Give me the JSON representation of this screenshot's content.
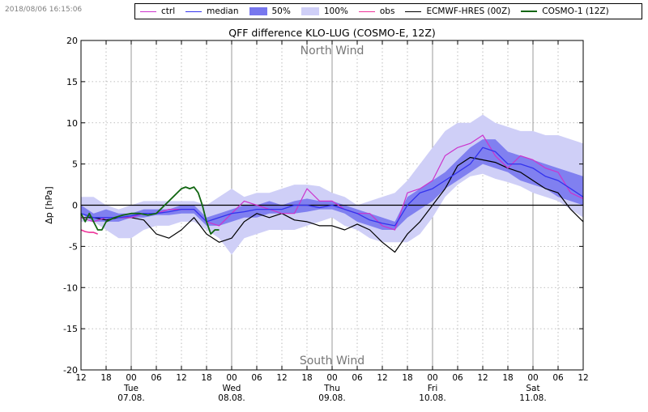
{
  "timestamp": "2018/08/06 16:15:06",
  "chart_data": {
    "type": "line",
    "title": "QFF difference KLO-LUG (COSMO-E, 12Z)",
    "ylabel": "Δp [hPa]",
    "xlabel": "",
    "ylim": [
      -20,
      20
    ],
    "xlim": [
      0,
      120
    ],
    "x_unit": "hours since 06.08. 12:00",
    "yticks": [
      -20,
      -15,
      -10,
      -5,
      0,
      5,
      10,
      15,
      20
    ],
    "xticks": [
      {
        "hour": 0,
        "label": "12"
      },
      {
        "hour": 6,
        "label": "18"
      },
      {
        "hour": 12,
        "label": "00"
      },
      {
        "hour": 18,
        "label": "06"
      },
      {
        "hour": 24,
        "label": "12"
      },
      {
        "hour": 30,
        "label": "18"
      },
      {
        "hour": 36,
        "label": "00"
      },
      {
        "hour": 42,
        "label": "06"
      },
      {
        "hour": 48,
        "label": "12"
      },
      {
        "hour": 54,
        "label": "18"
      },
      {
        "hour": 60,
        "label": "00"
      },
      {
        "hour": 66,
        "label": "06"
      },
      {
        "hour": 72,
        "label": "12"
      },
      {
        "hour": 78,
        "label": "18"
      },
      {
        "hour": 84,
        "label": "00"
      },
      {
        "hour": 90,
        "label": "06"
      },
      {
        "hour": 96,
        "label": "12"
      },
      {
        "hour": 102,
        "label": "18"
      },
      {
        "hour": 108,
        "label": "00"
      },
      {
        "hour": 114,
        "label": "06"
      },
      {
        "hour": 120,
        "label": "12"
      }
    ],
    "day_labels": [
      {
        "hour": 12,
        "day": "Tue",
        "date": "07.08."
      },
      {
        "hour": 36,
        "day": "Wed",
        "date": "08.08."
      },
      {
        "hour": 60,
        "day": "Thu",
        "date": "09.08."
      },
      {
        "hour": 84,
        "day": "Fri",
        "date": "10.08."
      },
      {
        "hour": 108,
        "day": "Sat",
        "date": "11.08."
      }
    ],
    "annotations": [
      {
        "text": "North Wind",
        "y": 18.8
      },
      {
        "text": "South Wind",
        "y": -18.8
      }
    ],
    "grid": true,
    "legend_position": "top",
    "legend": [
      {
        "label": "ctrl",
        "kind": "line",
        "color": "#cc33cc"
      },
      {
        "label": "median",
        "kind": "line",
        "color": "#3333ee"
      },
      {
        "label": "50%",
        "kind": "patch",
        "color": "#7777ee"
      },
      {
        "label": "100%",
        "kind": "patch",
        "color": "#cfcff7"
      },
      {
        "label": "obs",
        "kind": "line",
        "color": "#ee3399"
      },
      {
        "label": "ECMWF-HRES (00Z)",
        "kind": "line",
        "color": "#000000"
      },
      {
        "label": "COSMO-1 (12Z)",
        "kind": "line",
        "color": "#116611"
      }
    ],
    "x": [
      0,
      3,
      6,
      9,
      12,
      15,
      18,
      21,
      24,
      27,
      30,
      33,
      36,
      39,
      42,
      45,
      48,
      51,
      54,
      57,
      60,
      63,
      66,
      69,
      72,
      75,
      78,
      81,
      84,
      87,
      90,
      93,
      96,
      99,
      102,
      105,
      108,
      111,
      114,
      117,
      120
    ],
    "band_100": {
      "upper": [
        1,
        1,
        0,
        -0.5,
        0,
        0.5,
        0.5,
        0.5,
        0.5,
        0.5,
        0,
        1,
        2,
        1,
        1.5,
        1.5,
        2,
        2.5,
        2.5,
        2.3,
        1.5,
        1,
        0,
        0.5,
        1,
        1.5,
        3,
        5,
        7,
        9,
        10,
        10,
        11,
        10,
        9.5,
        9,
        9,
        8.5,
        8.5,
        8,
        7.5
      ],
      "lower": [
        -2,
        -2,
        -3,
        -4,
        -4,
        -3,
        -2.5,
        -2.5,
        -2,
        -2,
        -3,
        -4,
        -6,
        -4,
        -3.5,
        -3,
        -3,
        -3,
        -2.5,
        -2,
        -1.5,
        -2.5,
        -3,
        -4,
        -4.5,
        -4.5,
        -4.5,
        -3.5,
        -1.5,
        1,
        2.5,
        3.5,
        3.8,
        3.2,
        2.8,
        2.3,
        1.5,
        1,
        0.5,
        -0.5,
        -1.5
      ]
    },
    "band_50": {
      "upper": [
        0,
        -1,
        -0.5,
        -1,
        -1,
        -0.5,
        -0.5,
        -0.5,
        0,
        0,
        -1.5,
        -1,
        -0.5,
        0,
        0,
        0.5,
        0,
        0.5,
        0.8,
        0.5,
        0.5,
        0,
        -0.5,
        -1,
        -1.5,
        -2,
        1,
        2,
        3,
        4,
        5.5,
        7,
        8,
        8,
        6.5,
        6,
        5.5,
        5,
        4.5,
        4,
        3.5
      ],
      "lower": [
        -1,
        -2,
        -2,
        -2,
        -1.5,
        -1.5,
        -1.2,
        -1.2,
        -1,
        -1,
        -2.5,
        -2.5,
        -2,
        -1.5,
        -1.5,
        -1,
        -1,
        -1,
        -0.8,
        -0.5,
        -0.5,
        -1,
        -2,
        -2.5,
        -3,
        -3,
        -1.5,
        -0.5,
        0.5,
        2,
        3,
        4,
        5,
        4.5,
        4,
        3,
        2.5,
        2,
        1,
        0.5,
        0
      ]
    },
    "series": [
      {
        "name": "median",
        "color": "#3333ee",
        "width": 1.3,
        "x": [
          0,
          3,
          6,
          9,
          12,
          15,
          18,
          21,
          24,
          27,
          30,
          33,
          36,
          39,
          42,
          45,
          48,
          51,
          54,
          57,
          60,
          63,
          66,
          69,
          72,
          75,
          78,
          81,
          84,
          87,
          90,
          93,
          96,
          99,
          102,
          105,
          108,
          111,
          114,
          117,
          120
        ],
        "y": [
          -1,
          -1.5,
          -1.5,
          -1.5,
          -1.3,
          -1,
          -1,
          -0.8,
          -0.5,
          -0.5,
          -2,
          -1.5,
          -1,
          -0.8,
          -0.5,
          -0.5,
          -0.5,
          0,
          0,
          -0.3,
          0,
          -0.5,
          -1,
          -1.8,
          -2.2,
          -2.5,
          0,
          1.5,
          2,
          3,
          4,
          5,
          7,
          6.5,
          5,
          5,
          4.5,
          3.5,
          3,
          2,
          1
        ]
      },
      {
        "name": "ctrl",
        "color": "#cc33cc",
        "width": 1.2,
        "x": [
          0,
          3,
          6,
          9,
          12,
          15,
          18,
          21,
          24,
          27,
          30,
          33,
          36,
          39,
          42,
          45,
          48,
          51,
          54,
          57,
          60,
          63,
          66,
          69,
          72,
          75,
          78,
          81,
          84,
          87,
          90,
          93,
          96,
          99,
          102,
          105,
          108,
          111,
          114,
          117,
          120
        ],
        "y": [
          -1.5,
          -2,
          -1.5,
          -1.5,
          -1.5,
          -1,
          -1,
          -0.5,
          -0.5,
          -0.5,
          -2,
          -2.5,
          -1,
          0.5,
          0,
          -0.5,
          -1,
          -1,
          2,
          0.5,
          0.5,
          -0.5,
          -1,
          -1,
          -2.5,
          -3,
          1.5,
          2,
          3,
          6,
          7,
          7.5,
          8.5,
          6,
          4.5,
          6,
          5.5,
          4.5,
          4,
          1.5,
          0.8
        ]
      },
      {
        "name": "ECMWF-HRES (00Z)",
        "color": "#000000",
        "width": 1.2,
        "x": [
          0,
          3,
          6,
          9,
          12,
          15,
          18,
          21,
          24,
          27,
          30,
          33,
          36,
          39,
          42,
          45,
          48,
          51,
          54,
          57,
          60,
          63,
          66,
          69,
          72,
          75,
          78,
          81,
          84,
          87,
          90,
          93,
          96,
          99,
          102,
          105,
          108,
          111,
          114,
          117,
          120
        ],
        "y": [
          -1.5,
          -1.5,
          -1.8,
          -1.5,
          -1.5,
          -1.8,
          -3.5,
          -4,
          -3,
          -1.5,
          -3.5,
          -4.5,
          -4,
          -2,
          -1,
          -1.5,
          -1,
          -1.8,
          -2,
          -2.5,
          -2.5,
          -3,
          -2.3,
          -3,
          -4.5,
          -5.7,
          -3.5,
          -2,
          0,
          2,
          4.8,
          5.8,
          5.5,
          5.2,
          4.5,
          4,
          3,
          2,
          1.5,
          -0.5,
          -2
        ]
      },
      {
        "name": "COSMO-1 (12Z)",
        "color": "#116611",
        "width": 1.8,
        "x": [
          0,
          1,
          2,
          3,
          4,
          5,
          6,
          8,
          10,
          12,
          14,
          16,
          18,
          20,
          22,
          23,
          24,
          25,
          26,
          27,
          28,
          29,
          30,
          31,
          32,
          33
        ],
        "y": [
          -1,
          -2,
          -1,
          -2,
          -3,
          -3,
          -2,
          -1.5,
          -1.2,
          -1,
          -1,
          -1.2,
          -1,
          0,
          1,
          1.5,
          2,
          2.2,
          2,
          2.2,
          1.5,
          0,
          -2,
          -3.5,
          -3,
          -3
        ]
      },
      {
        "name": "obs",
        "color": "#ee3399",
        "width": 1.6,
        "x": [
          0,
          1,
          2,
          3,
          4
        ],
        "y": [
          -3,
          -3.2,
          -3.3,
          -3.3,
          -3.5
        ]
      }
    ]
  }
}
